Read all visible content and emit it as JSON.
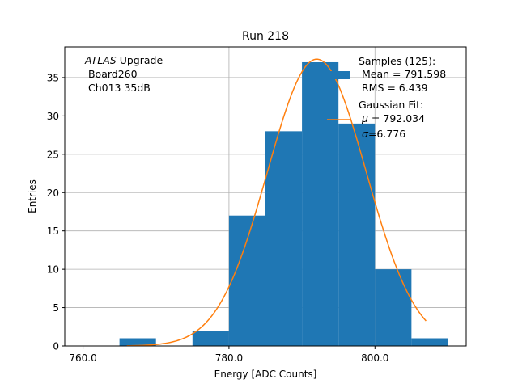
{
  "chart_data": {
    "type": "bar",
    "title": "Run 218",
    "xlabel": "Energy [ADC Counts]",
    "ylabel": "Entries",
    "xlim": [
      757.5,
      812.5
    ],
    "ylim": [
      0,
      39
    ],
    "x_ticks": [
      760,
      780,
      800
    ],
    "x_tick_labels": [
      "760.0",
      "780.0",
      "800.0"
    ],
    "y_ticks": [
      0,
      5,
      10,
      15,
      20,
      25,
      30,
      35
    ],
    "grid": true,
    "bins": [
      {
        "x0": 765,
        "x1": 770,
        "value": 1
      },
      {
        "x0": 770,
        "x1": 775,
        "value": 0
      },
      {
        "x0": 775,
        "x1": 780,
        "value": 2
      },
      {
        "x0": 780,
        "x1": 785,
        "value": 17
      },
      {
        "x0": 785,
        "x1": 790,
        "value": 28
      },
      {
        "x0": 790,
        "x1": 795,
        "value": 37
      },
      {
        "x0": 795,
        "x1": 800,
        "value": 29
      },
      {
        "x0": 800,
        "x1": 805,
        "value": 10
      },
      {
        "x0": 805,
        "x1": 810,
        "value": 1
      }
    ],
    "fit": {
      "type": "gaussian",
      "mu": 792.034,
      "sigma": 6.776,
      "amplitude": 37.4,
      "x_range": [
        766,
        807
      ]
    },
    "colors": {
      "histogram": "#1f77b4",
      "fit": "#ff7f0e"
    },
    "annotation": {
      "italic": "ATLAS",
      "line1_rest": " Upgrade",
      "line2": " Board260",
      "line3": " Ch013 35dB"
    },
    "legend": {
      "placement": "top-right",
      "samples_lines": [
        "Samples (125):",
        " Mean = 791.598",
        " RMS = 6.439"
      ],
      "fit_line1": "Gaussian Fit:",
      "fit_line2_value": " = 792.034",
      "fit_line3_value": "=6.776"
    }
  }
}
